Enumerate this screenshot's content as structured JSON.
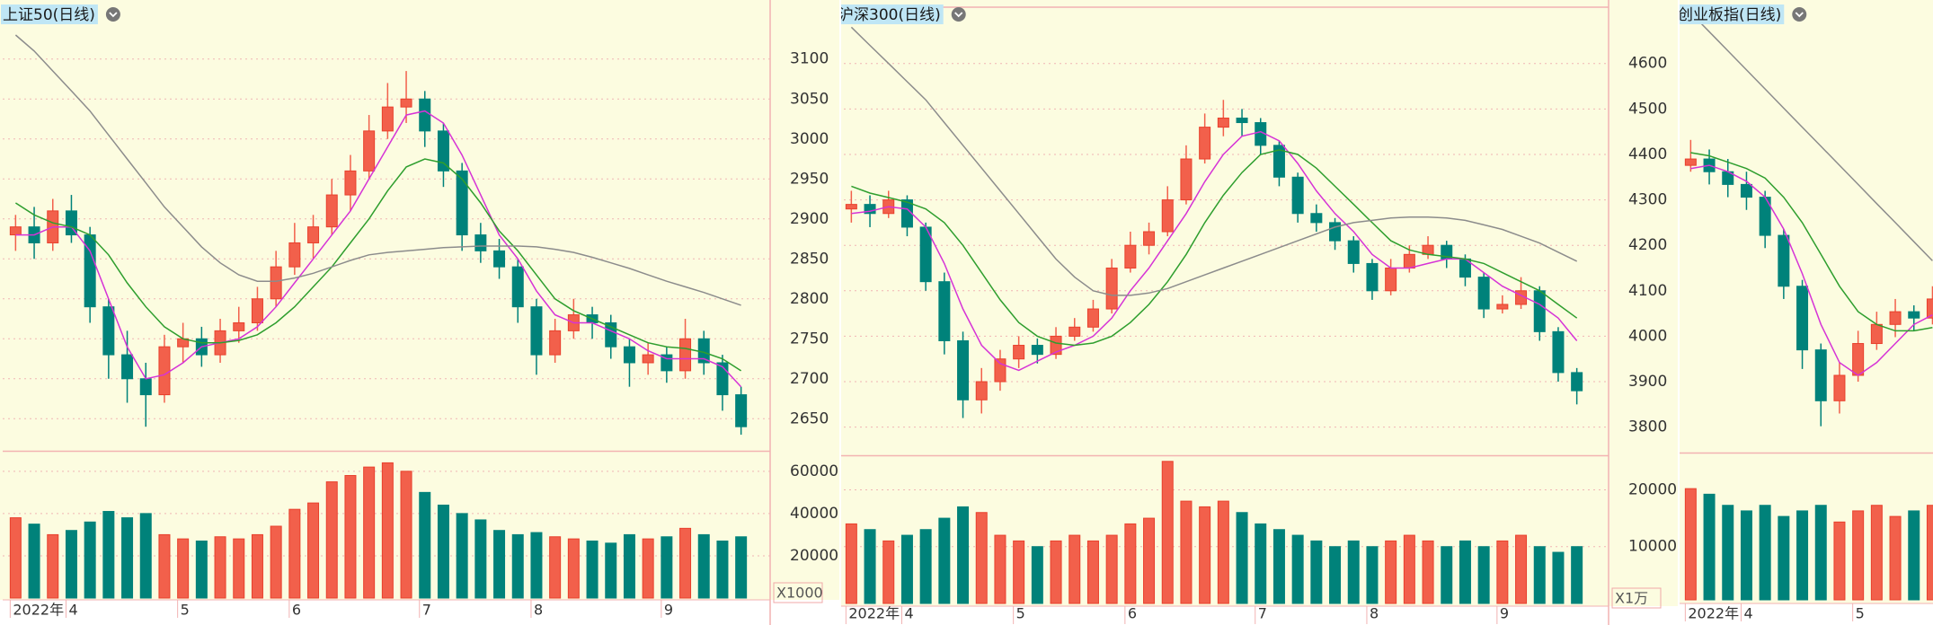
{
  "chart_data": [
    {
      "type": "candlestick",
      "title": "上证50(日线)",
      "up_color": "#f2604b",
      "down_color": "#00827a",
      "categories": [
        "2022年",
        null,
        null,
        "4",
        null,
        null,
        null,
        null,
        null,
        "5",
        null,
        null,
        null,
        null,
        null,
        "6",
        null,
        null,
        null,
        null,
        null,
        null,
        "7",
        null,
        null,
        null,
        null,
        null,
        "8",
        null,
        null,
        null,
        null,
        null,
        null,
        "9",
        null,
        null,
        null,
        null
      ],
      "open": [
        2880,
        2890,
        2870,
        2910,
        2880,
        2790,
        2730,
        2700,
        2680,
        2740,
        2750,
        2730,
        2760,
        2770,
        2800,
        2840,
        2870,
        2890,
        2930,
        2960,
        3010,
        3040,
        3050,
        3010,
        2960,
        2880,
        2860,
        2840,
        2790,
        2730,
        2760,
        2780,
        2770,
        2740,
        2720,
        2730,
        2710,
        2750,
        2720,
        2680
      ],
      "high": [
        2905,
        2915,
        2925,
        2930,
        2890,
        2800,
        2760,
        2720,
        2755,
        2770,
        2765,
        2775,
        2790,
        2815,
        2860,
        2895,
        2905,
        2950,
        2980,
        3030,
        3070,
        3085,
        3060,
        3020,
        2970,
        2895,
        2875,
        2850,
        2800,
        2775,
        2800,
        2790,
        2780,
        2750,
        2745,
        2740,
        2775,
        2760,
        2730,
        2690
      ],
      "low": [
        2860,
        2850,
        2860,
        2870,
        2770,
        2700,
        2670,
        2640,
        2670,
        2720,
        2715,
        2720,
        2745,
        2760,
        2790,
        2830,
        2850,
        2880,
        2910,
        2950,
        3000,
        3020,
        2990,
        2940,
        2860,
        2845,
        2825,
        2770,
        2705,
        2720,
        2750,
        2750,
        2725,
        2690,
        2705,
        2695,
        2700,
        2705,
        2660,
        2630
      ],
      "close": [
        2890,
        2870,
        2910,
        2880,
        2790,
        2730,
        2700,
        2680,
        2740,
        2750,
        2730,
        2760,
        2770,
        2800,
        2840,
        2870,
        2890,
        2930,
        2960,
        3010,
        3040,
        3050,
        3010,
        2960,
        2880,
        2860,
        2840,
        2790,
        2730,
        2760,
        2780,
        2770,
        2740,
        2720,
        2730,
        2710,
        2750,
        2720,
        2680,
        2640
      ],
      "ma_lines": [
        {
          "color": "#d633d6",
          "values": [
            2880,
            2880,
            2890,
            2890,
            2860,
            2800,
            2740,
            2700,
            2705,
            2720,
            2740,
            2745,
            2750,
            2765,
            2790,
            2820,
            2850,
            2880,
            2910,
            2950,
            2990,
            3030,
            3035,
            3020,
            2980,
            2930,
            2880,
            2850,
            2810,
            2780,
            2770,
            2770,
            2760,
            2750,
            2735,
            2725,
            2725,
            2725,
            2715,
            2690
          ]
        },
        {
          "color": "#2e9e2e",
          "values": [
            2920,
            2905,
            2895,
            2890,
            2880,
            2855,
            2820,
            2790,
            2765,
            2750,
            2745,
            2745,
            2748,
            2755,
            2770,
            2790,
            2815,
            2840,
            2870,
            2900,
            2935,
            2965,
            2975,
            2970,
            2950,
            2920,
            2885,
            2860,
            2830,
            2800,
            2785,
            2775,
            2765,
            2755,
            2745,
            2740,
            2738,
            2733,
            2725,
            2710
          ]
        },
        {
          "color": "#8c8c8c",
          "values": [
            3130,
            3110,
            3085,
            3060,
            3035,
            3005,
            2975,
            2945,
            2915,
            2890,
            2865,
            2845,
            2830,
            2822,
            2822,
            2826,
            2832,
            2840,
            2848,
            2855,
            2858,
            2860,
            2862,
            2864,
            2865,
            2866,
            2866,
            2866,
            2865,
            2862,
            2858,
            2852,
            2845,
            2838,
            2830,
            2822,
            2815,
            2808,
            2800,
            2792
          ]
        }
      ],
      "ylim": [
        2611,
        3166
      ],
      "yticks": [
        2650,
        2700,
        2750,
        2800,
        2850,
        2900,
        2950,
        3000,
        3050,
        3100
      ],
      "volume": {
        "values": [
          38000,
          35000,
          30000,
          32000,
          36000,
          41000,
          38000,
          40000,
          30000,
          28000,
          27000,
          29000,
          28000,
          30000,
          34000,
          42000,
          45000,
          55000,
          58000,
          62000,
          64000,
          60000,
          50000,
          44000,
          40000,
          37000,
          32000,
          30000,
          31000,
          29000,
          28000,
          27000,
          26000,
          30000,
          28000,
          29000,
          33000,
          30000,
          27000,
          29000
        ],
        "ylim": [
          0,
          68000
        ],
        "yticks": [
          20000,
          40000,
          60000
        ],
        "unit_label": "X1000"
      }
    },
    {
      "type": "candlestick",
      "title": "沪深300(日线)",
      "up_color": "#f2604b",
      "down_color": "#00827a",
      "categories": [
        "2022年",
        null,
        null,
        "4",
        null,
        null,
        null,
        null,
        null,
        "5",
        null,
        null,
        null,
        null,
        null,
        "6",
        null,
        null,
        null,
        null,
        null,
        null,
        "7",
        null,
        null,
        null,
        null,
        null,
        "8",
        null,
        null,
        null,
        null,
        null,
        null,
        "9",
        null,
        null,
        null,
        null
      ],
      "open": [
        4280,
        4290,
        4270,
        4300,
        4240,
        4120,
        3990,
        3860,
        3900,
        3950,
        3980,
        3960,
        4000,
        4020,
        4060,
        4150,
        4200,
        4230,
        4300,
        4390,
        4460,
        4480,
        4470,
        4420,
        4350,
        4270,
        4250,
        4210,
        4160,
        4100,
        4150,
        4180,
        4200,
        4170,
        4130,
        4060,
        4070,
        4100,
        4010,
        3920
      ],
      "high": [
        4320,
        4310,
        4320,
        4310,
        4250,
        4140,
        4010,
        3930,
        3970,
        4000,
        3995,
        4020,
        4040,
        4080,
        4170,
        4230,
        4250,
        4330,
        4420,
        4490,
        4520,
        4500,
        4480,
        4430,
        4360,
        4290,
        4260,
        4220,
        4170,
        4170,
        4200,
        4220,
        4210,
        4180,
        4140,
        4090,
        4130,
        4110,
        4020,
        3930
      ],
      "low": [
        4250,
        4240,
        4260,
        4220,
        4100,
        3960,
        3820,
        3830,
        3880,
        3930,
        3940,
        3950,
        3990,
        4010,
        4050,
        4140,
        4180,
        4220,
        4290,
        4380,
        4440,
        4440,
        4400,
        4330,
        4250,
        4230,
        4190,
        4140,
        4080,
        4090,
        4140,
        4170,
        4150,
        4110,
        4040,
        4050,
        4060,
        3990,
        3900,
        3850
      ],
      "close": [
        4290,
        4270,
        4300,
        4240,
        4120,
        3990,
        3860,
        3900,
        3950,
        3980,
        3960,
        4000,
        4020,
        4060,
        4150,
        4200,
        4230,
        4300,
        4390,
        4460,
        4480,
        4470,
        4420,
        4350,
        4270,
        4250,
        4210,
        4160,
        4100,
        4150,
        4180,
        4200,
        4170,
        4130,
        4060,
        4070,
        4100,
        4010,
        3920,
        3880
      ],
      "ma_lines": [
        {
          "color": "#d633d6",
          "values": [
            4270,
            4275,
            4285,
            4280,
            4240,
            4160,
            4060,
            3980,
            3940,
            3925,
            3945,
            3965,
            3980,
            4000,
            4040,
            4100,
            4150,
            4210,
            4270,
            4340,
            4400,
            4440,
            4450,
            4430,
            4380,
            4320,
            4270,
            4230,
            4180,
            4150,
            4150,
            4160,
            4170,
            4170,
            4140,
            4110,
            4090,
            4070,
            4040,
            3990
          ]
        },
        {
          "color": "#2e9e2e",
          "values": [
            4330,
            4315,
            4305,
            4295,
            4280,
            4250,
            4200,
            4140,
            4080,
            4030,
            4000,
            3985,
            3980,
            3985,
            4000,
            4030,
            4070,
            4120,
            4180,
            4250,
            4310,
            4360,
            4400,
            4410,
            4400,
            4370,
            4330,
            4290,
            4250,
            4210,
            4190,
            4180,
            4175,
            4170,
            4160,
            4140,
            4120,
            4100,
            4070,
            4040
          ]
        },
        {
          "color": "#8c8c8c",
          "values": [
            4680,
            4640,
            4600,
            4560,
            4520,
            4470,
            4420,
            4370,
            4320,
            4270,
            4220,
            4170,
            4130,
            4100,
            4090,
            4090,
            4095,
            4105,
            4120,
            4135,
            4150,
            4165,
            4180,
            4195,
            4210,
            4225,
            4240,
            4250,
            4255,
            4260,
            4262,
            4262,
            4260,
            4255,
            4245,
            4235,
            4220,
            4205,
            4185,
            4165
          ]
        }
      ],
      "ylim": [
        3740,
        4722
      ],
      "yticks": [
        3800,
        3900,
        4000,
        4100,
        4200,
        4300,
        4400,
        4500,
        4600
      ],
      "volume": {
        "values": [
          14000,
          13000,
          11000,
          12000,
          13000,
          15000,
          17000,
          16000,
          12000,
          11000,
          10000,
          11000,
          12000,
          11000,
          12000,
          14000,
          15000,
          25000,
          18000,
          17000,
          18000,
          16000,
          14000,
          13000,
          12000,
          11000,
          10000,
          11000,
          10000,
          11000,
          12000,
          11000,
          10000,
          11000,
          10000,
          11000,
          12000,
          10000,
          9000,
          10000
        ],
        "ylim": [
          0,
          25600
        ],
        "yticks": [
          10000,
          20000
        ],
        "unit_label": "X1万"
      }
    },
    {
      "type": "candlestick",
      "title": "创业板指(日线)",
      "up_color": "#f2604b",
      "down_color": "#00827a",
      "categories": [
        "2022年",
        null,
        null,
        "4",
        null,
        null,
        null,
        null,
        null,
        "5",
        null,
        null,
        null,
        null
      ],
      "open": [
        2750,
        2760,
        2740,
        2720,
        2700,
        2640,
        2560,
        2460,
        2380,
        2420,
        2470,
        2500,
        2520,
        2510
      ],
      "high": [
        2790,
        2775,
        2760,
        2740,
        2710,
        2650,
        2570,
        2470,
        2440,
        2490,
        2520,
        2540,
        2530,
        2560
      ],
      "low": [
        2740,
        2720,
        2700,
        2680,
        2620,
        2540,
        2430,
        2340,
        2360,
        2410,
        2460,
        2480,
        2490,
        2500
      ],
      "close": [
        2760,
        2740,
        2720,
        2700,
        2640,
        2560,
        2460,
        2380,
        2420,
        2470,
        2500,
        2520,
        2510,
        2540
      ],
      "ma_lines": [
        {
          "color": "#d633d6",
          "values": [
            2745,
            2750,
            2740,
            2725,
            2700,
            2650,
            2580,
            2500,
            2440,
            2420,
            2440,
            2470,
            2500,
            2515
          ]
        },
        {
          "color": "#2e9e2e",
          "values": [
            2770,
            2765,
            2755,
            2745,
            2730,
            2700,
            2660,
            2610,
            2560,
            2520,
            2500,
            2490,
            2490,
            2495
          ]
        },
        {
          "color": "#8c8c8c",
          "values": [
            2990,
            2960,
            2930,
            2900,
            2870,
            2840,
            2810,
            2780,
            2750,
            2720,
            2690,
            2660,
            2630,
            2600
          ]
        }
      ],
      "ylim": [
        2300,
        3000
      ],
      "volume": {
        "values": [
          20000,
          19000,
          17000,
          16000,
          17000,
          15000,
          16000,
          17000,
          14000,
          16000,
          17000,
          15000,
          16000,
          17000
        ],
        "ylim": [
          0,
          26000
        ]
      }
    }
  ]
}
